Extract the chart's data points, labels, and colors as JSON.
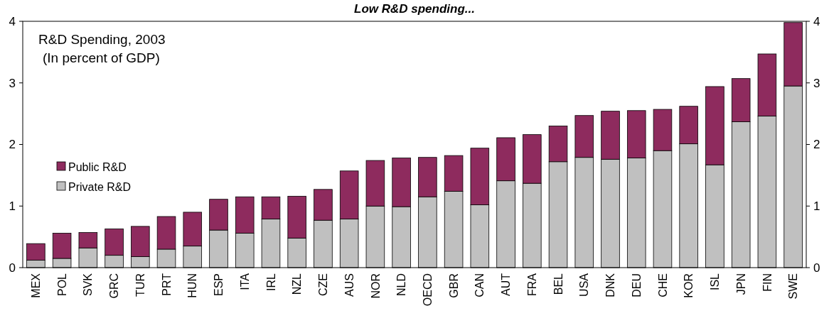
{
  "chart_data": {
    "type": "bar",
    "title": "Low R&D spending...",
    "annotations": [
      "R&D Spending, 2003",
      "(In percent of GDP)"
    ],
    "categories": [
      "MEX",
      "POL",
      "SVK",
      "GRC",
      "TUR",
      "PRT",
      "HUN",
      "ESP",
      "ITA",
      "IRL",
      "NZL",
      "CZE",
      "AUS",
      "NOR",
      "NLD",
      "OECD",
      "GBR",
      "CAN",
      "AUT",
      "FRA",
      "BEL",
      "USA",
      "DNK",
      "DEU",
      "CHE",
      "KOR",
      "ISL",
      "JPN",
      "FIN",
      "SWE"
    ],
    "stacked": true,
    "series": [
      {
        "name": "Private R&D",
        "color": "#c0c0c0",
        "values": [
          0.12,
          0.15,
          0.32,
          0.2,
          0.18,
          0.3,
          0.35,
          0.61,
          0.56,
          0.79,
          0.48,
          0.77,
          0.79,
          1.0,
          0.99,
          1.15,
          1.24,
          1.02,
          1.41,
          1.37,
          1.72,
          1.79,
          1.76,
          1.78,
          1.9,
          2.01,
          1.67,
          2.37,
          2.46,
          2.95
        ]
      },
      {
        "name": "Public R&D",
        "color": "#8e2b5e",
        "values": [
          0.27,
          0.41,
          0.25,
          0.43,
          0.49,
          0.53,
          0.55,
          0.5,
          0.59,
          0.36,
          0.68,
          0.5,
          0.78,
          0.74,
          0.79,
          0.64,
          0.58,
          0.92,
          0.7,
          0.79,
          0.58,
          0.68,
          0.78,
          0.77,
          0.67,
          0.61,
          1.27,
          0.7,
          1.01,
          1.03
        ]
      }
    ],
    "ylim": [
      0,
      4
    ],
    "yticks": [
      0,
      1,
      2,
      3,
      4
    ],
    "y2lim": [
      0,
      4
    ],
    "y2ticks": [
      0,
      1,
      2,
      3,
      4
    ],
    "legend": "left",
    "grid": false
  }
}
